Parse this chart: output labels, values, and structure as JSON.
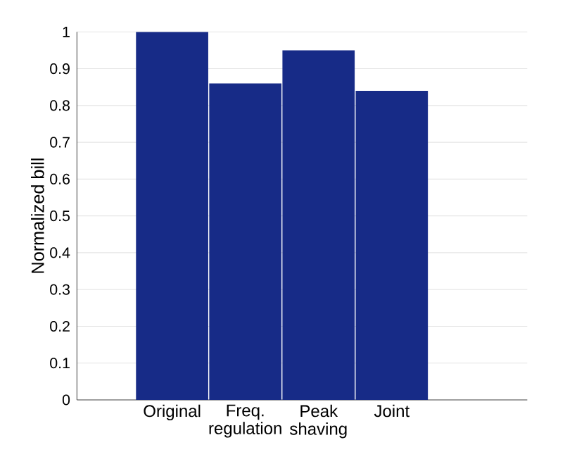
{
  "chart_data": {
    "type": "bar",
    "ylabel": "Normalized bill",
    "categories": [
      "Original",
      "Freq.\nregulation",
      "Peak\nshaving",
      "Joint"
    ],
    "values": [
      1.0,
      0.86,
      0.95,
      0.84
    ],
    "color": "#172b87",
    "ylim": [
      0,
      1
    ],
    "yticks": [
      0,
      0.1,
      0.2,
      0.3,
      0.4,
      0.5,
      0.6,
      0.7,
      0.8,
      0.9,
      1
    ],
    "grid": "y"
  }
}
